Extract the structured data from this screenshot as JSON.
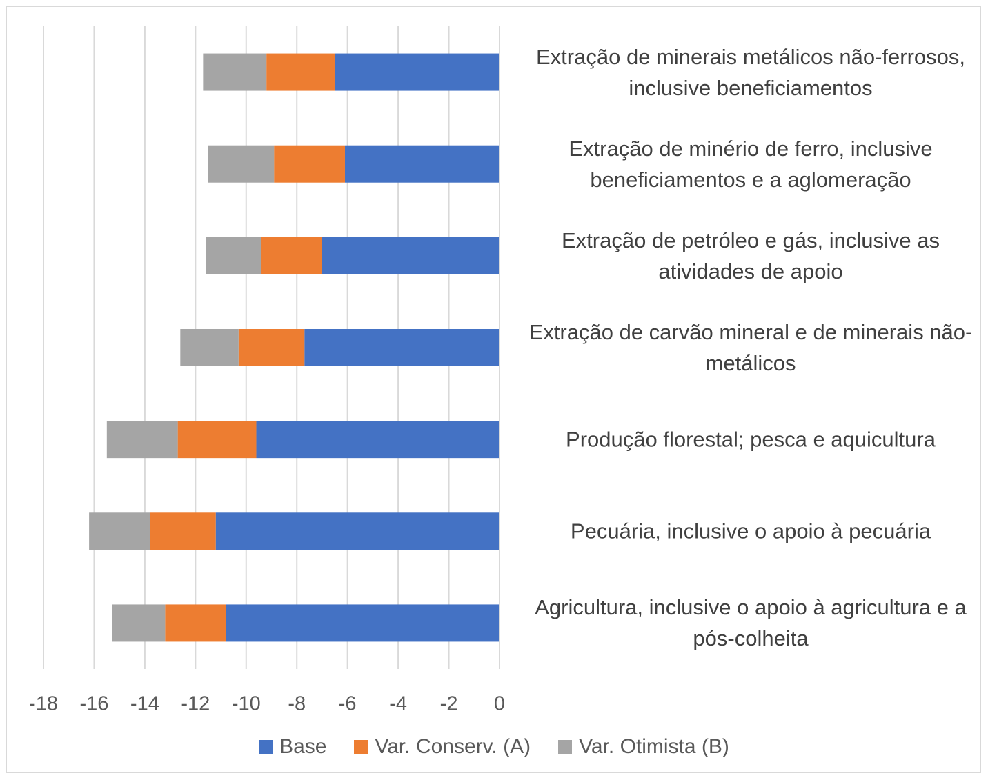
{
  "chart_data": {
    "type": "stacked-barh",
    "categories": [
      "Extração de minerais metálicos não-ferrosos, inclusive beneficiamentos",
      "Extração de minério de ferro, inclusive beneficiamentos e a aglomeração",
      "Extração de petróleo e gás, inclusive as atividades de apoio",
      "Extração de carvão mineral e de minerais não-metálicos",
      "Produção florestal; pesca e aquicultura",
      "Pecuária, inclusive o apoio à pecuária",
      "Agricultura, inclusive o apoio à agricultura e a pós-colheita"
    ],
    "series": [
      {
        "name": "Base",
        "color": "#4472c4",
        "values": [
          -6.5,
          -6.1,
          -7.0,
          -7.7,
          -9.6,
          -11.2,
          -10.8
        ]
      },
      {
        "name": "Var. Conserv. (A)",
        "color": "#ed7d31",
        "values": [
          -2.7,
          -2.8,
          -2.4,
          -2.6,
          -3.1,
          -2.6,
          -2.4
        ]
      },
      {
        "name": "Var. Otimista (B)",
        "color": "#a5a5a5",
        "values": [
          -2.5,
          -2.6,
          -2.2,
          -2.3,
          -2.8,
          -2.4,
          -2.1
        ]
      }
    ],
    "xlim": [
      -18,
      0
    ],
    "xticks": [
      -18,
      -16,
      -14,
      -12,
      -10,
      -8,
      -6,
      -4,
      -2,
      0
    ],
    "grid": true,
    "legend": "bottom"
  }
}
